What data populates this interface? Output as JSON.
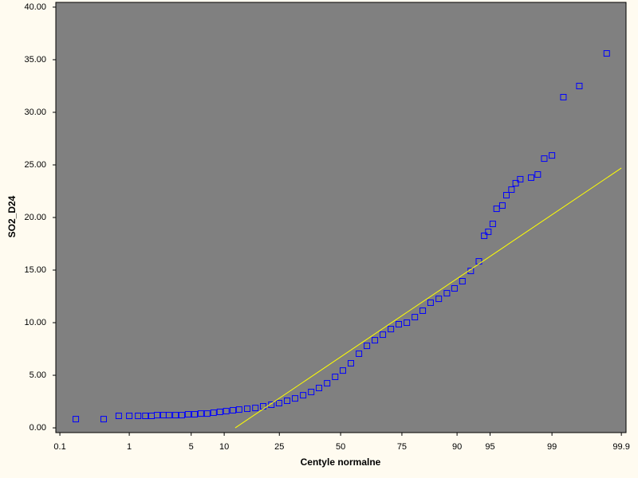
{
  "chart_data": {
    "type": "probability",
    "x_label": "Centyle normalne",
    "y_label": "SO2_D24",
    "xscale": "probit",
    "xlim": [
      0.086,
      99.916
    ],
    "xticks": [
      0.1,
      1,
      5,
      10,
      25,
      50,
      75,
      90,
      95,
      99,
      99.9
    ],
    "ylim": [
      -0.45,
      40.45
    ],
    "yticks": [
      {
        "value": 0,
        "label": "0.00"
      },
      {
        "value": 5,
        "label": "5.00"
      },
      {
        "value": 10,
        "label": "10.00"
      },
      {
        "value": 15,
        "label": "15.00"
      },
      {
        "value": 20,
        "label": "20.00"
      },
      {
        "value": 25,
        "label": "25.00"
      },
      {
        "value": 30,
        "label": "30.00"
      },
      {
        "value": 35,
        "label": "35.00"
      },
      {
        "value": 40,
        "label": "40.00"
      }
    ],
    "series": [
      {
        "color": "#0000ff",
        "x": [
          0.178,
          0.455,
          0.73,
          1.0,
          1.29,
          1.58,
          1.87,
          2.17,
          2.56,
          2.94,
          3.46,
          4.02,
          4.66,
          5.4,
          6.2,
          7.1,
          8.1,
          9.2,
          10.4,
          11.8,
          13.2,
          15.2,
          17.4,
          19.7,
          22.3,
          24.9,
          27.8,
          30.8,
          34.0,
          37.3,
          40.6,
          44.1,
          47.6,
          51.0,
          54.5,
          58.0,
          61.4,
          64.7,
          67.9,
          71.0,
          73.9,
          76.7,
          79.3,
          81.7,
          83.9,
          86.0,
          87.9,
          89.5,
          91.0,
          92.4,
          93.6,
          94.3,
          94.8,
          95.3,
          95.7,
          96.25,
          96.6,
          97.0,
          97.3,
          97.6,
          98.2,
          98.5,
          98.75,
          99.0,
          99.29,
          99.57,
          99.83
        ],
        "values": [
          0.83,
          0.83,
          1.14,
          1.14,
          1.14,
          1.14,
          1.14,
          1.21,
          1.21,
          1.21,
          1.21,
          1.21,
          1.29,
          1.29,
          1.36,
          1.36,
          1.44,
          1.52,
          1.59,
          1.67,
          1.74,
          1.82,
          1.89,
          2.05,
          2.2,
          2.35,
          2.58,
          2.8,
          3.1,
          3.41,
          3.79,
          4.24,
          4.85,
          5.45,
          6.14,
          7.05,
          7.8,
          8.33,
          8.86,
          9.39,
          9.85,
          10.0,
          10.53,
          11.14,
          11.9,
          12.27,
          12.8,
          13.26,
          13.94,
          14.92,
          15.83,
          18.26,
          18.64,
          19.39,
          20.83,
          21.14,
          22.12,
          22.65,
          23.26,
          23.64,
          23.79,
          24.09,
          25.6,
          25.9,
          31.44,
          32.5,
          35.6
        ]
      },
      {
        "color": "#ffff00",
        "kind": "line",
        "x": [
          12.3,
          99.9
        ],
        "values": [
          0,
          24.7
        ]
      }
    ]
  }
}
